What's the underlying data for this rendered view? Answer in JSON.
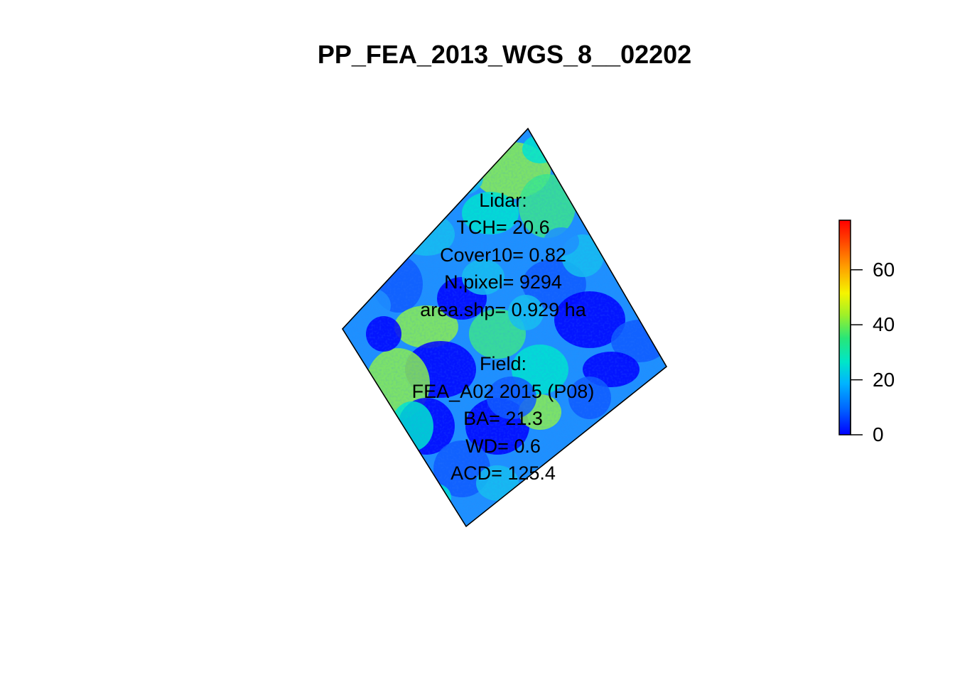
{
  "title": "PP_FEA_2013_WGS_8__02202",
  "annotation": {
    "lidar": [
      "Lidar:",
      "TCH= 20.6",
      "Cover10= 0.82",
      "N.pixel= 9294",
      "area.shp= 0.929 ha"
    ],
    "field": [
      "Field:",
      "FEA_A02 2015 (P08)",
      "BA= 21.3",
      "WD= 0.6",
      "ACD= 125.4"
    ]
  },
  "legend": {
    "ticks": [
      "0",
      "20",
      "40",
      "60"
    ],
    "range": [
      0,
      78
    ],
    "colormap": "rainbow (blue → cyan → green → yellow → red)"
  },
  "map": {
    "raster_palette": [
      "#0000ff",
      "#0f5aff",
      "#1e90ff",
      "#16c0f0",
      "#00e5d0",
      "#3ce68c",
      "#8cf050",
      "#d2f03c",
      "#ffff00",
      "#ff9a00",
      "#ff0000"
    ]
  }
}
